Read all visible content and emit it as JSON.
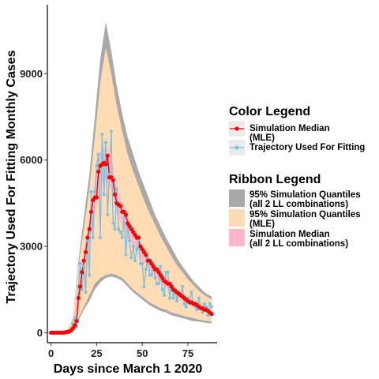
{
  "chart_data": {
    "type": "line",
    "title": "",
    "xlabel": "Days since March 1 2020",
    "ylabel": "Trajectory Used For Fitting Monthly Cases",
    "xlim": [
      -2,
      91
    ],
    "ylim": [
      -350,
      11400
    ],
    "xticks": [
      0,
      25,
      50,
      75
    ],
    "yticks": [
      0,
      3000,
      6000,
      9000
    ],
    "grid": false,
    "legend_placement": "right",
    "colors": {
      "median": "#ff0000",
      "observed": "#7ec0dd",
      "ribbon_all": "#a9a9a9",
      "ribbon_mle": "#ffdcb4",
      "ribbon_median": "#ffb6c8"
    },
    "legends": {
      "color": {
        "title": "Color  Legend",
        "entries": [
          {
            "label_lines": [
              "Simulation Median",
              " (MLE)"
            ],
            "color": "#ff0000"
          },
          {
            "label_lines": [
              "Trajectory Used For Fitting"
            ],
            "color": "#7ec0dd"
          }
        ]
      },
      "ribbon": {
        "title": "Ribbon  Legend",
        "entries": [
          {
            "label_lines": [
              "95% Simulation Quantiles",
              " (all 2 LL combinations)"
            ],
            "color": "#a9a9a9"
          },
          {
            "label_lines": [
              "95% Simulation Quantiles",
              " (MLE)"
            ],
            "color": "#ffdcb4"
          },
          {
            "label_lines": [
              "Simulation Median",
              " (all 2 LL combinations)"
            ],
            "color": "#ffb6c8"
          }
        ]
      }
    },
    "series": [
      {
        "name": "Simulation Median (MLE)",
        "x": [
          0,
          1,
          2,
          3,
          4,
          5,
          6,
          7,
          8,
          9,
          10,
          11,
          12,
          13,
          14,
          15,
          16,
          17,
          18,
          19,
          20,
          21,
          22,
          23,
          24,
          25,
          26,
          27,
          28,
          29,
          30,
          31,
          32,
          33,
          34,
          35,
          36,
          37,
          38,
          39,
          40,
          41,
          42,
          43,
          44,
          45,
          46,
          47,
          48,
          49,
          50,
          51,
          52,
          53,
          54,
          55,
          56,
          57,
          58,
          59,
          60,
          61,
          62,
          63,
          64,
          65,
          66,
          67,
          68,
          69,
          70,
          71,
          72,
          73,
          74,
          75,
          76,
          77,
          78,
          79,
          80,
          81,
          82,
          83,
          84,
          85,
          86,
          87,
          88
        ],
        "y": [
          0,
          0,
          0,
          0,
          0,
          0,
          0,
          0,
          10,
          20,
          40,
          80,
          150,
          250,
          400,
          1200,
          1600,
          2100,
          2500,
          2800,
          3300,
          3600,
          4200,
          4600,
          4700,
          4700,
          5600,
          5800,
          5850,
          5900,
          5850,
          6150,
          5400,
          5400,
          5300,
          4800,
          4500,
          4450,
          4400,
          4200,
          4200,
          4100,
          3800,
          3700,
          3600,
          3500,
          3400,
          3300,
          3300,
          3000,
          2900,
          2800,
          2700,
          2500,
          2500,
          2400,
          2300,
          2200,
          2200,
          2100,
          2000,
          1900,
          1800,
          1750,
          1700,
          1700,
          1600,
          1500,
          1450,
          1400,
          1350,
          1300,
          1250,
          1200,
          1150,
          1100,
          1050,
          1050,
          1000,
          1000,
          950,
          900,
          850,
          850,
          800,
          800,
          750,
          700,
          650
        ]
      },
      {
        "name": "Trajectory Used For Fitting",
        "x": [
          0,
          1,
          2,
          3,
          4,
          5,
          6,
          7,
          8,
          9,
          10,
          11,
          12,
          13,
          14,
          15,
          16,
          17,
          18,
          19,
          20,
          21,
          22,
          23,
          24,
          25,
          26,
          27,
          28,
          29,
          30,
          31,
          32,
          33,
          34,
          35,
          36,
          37,
          38,
          39,
          40,
          41,
          42,
          43,
          44,
          45,
          46,
          47,
          48,
          49,
          50,
          51,
          52,
          53,
          54,
          55,
          56,
          57,
          58,
          59,
          60,
          61,
          62,
          63,
          64,
          65,
          66,
          67,
          68,
          69,
          70,
          71,
          72,
          73,
          74,
          75,
          76,
          77,
          78,
          79,
          80,
          81,
          82,
          83,
          84,
          85,
          86,
          87,
          88
        ],
        "y": [
          0,
          0,
          0,
          0,
          0,
          0,
          0,
          0,
          0,
          0,
          50,
          100,
          300,
          500,
          200,
          1600,
          2400,
          1500,
          2300,
          1400,
          3200,
          2000,
          4900,
          3300,
          4900,
          5800,
          6200,
          3300,
          6900,
          4800,
          6600,
          4100,
          5500,
          7000,
          3800,
          3600,
          5000,
          3600,
          3500,
          3300,
          4000,
          2700,
          3700,
          3200,
          2600,
          3000,
          2500,
          2900,
          3200,
          2400,
          2400,
          1600,
          2200,
          2600,
          2000,
          2000,
          2400,
          1900,
          1700,
          1700,
          2300,
          1500,
          1300,
          2100,
          2100,
          1200,
          1700,
          1200,
          1500,
          1100,
          1400,
          1300,
          1600,
          1000,
          900,
          1200,
          1100,
          1400,
          1000,
          900,
          800,
          1200,
          900,
          700,
          1000,
          900,
          600,
          1000,
          900
        ]
      }
    ],
    "ribbons": [
      {
        "name": "95% Simulation Quantiles (all 2 LL combinations)",
        "x": [
          0,
          3,
          6,
          9,
          12,
          15,
          18,
          21,
          24,
          27,
          30,
          33,
          36,
          39,
          42,
          45,
          48,
          51,
          54,
          57,
          60,
          63,
          66,
          69,
          72,
          75,
          78,
          81,
          84,
          88
        ],
        "lower": [
          0,
          0,
          0,
          0,
          0,
          400,
          800,
          1100,
          1500,
          1750,
          1900,
          1950,
          1900,
          1800,
          1600,
          1400,
          1250,
          1100,
          950,
          850,
          750,
          700,
          600,
          550,
          500,
          450,
          400,
          380,
          350,
          320
        ],
        "upper": [
          50,
          50,
          50,
          100,
          500,
          2500,
          4000,
          5500,
          7500,
          9500,
          10800,
          9800,
          8600,
          7600,
          6800,
          6200,
          5600,
          5100,
          4600,
          4100,
          3700,
          3300,
          2950,
          2600,
          2300,
          2050,
          1800,
          1600,
          1400,
          1250
        ]
      },
      {
        "name": "95% Simulation Quantiles (MLE)",
        "x": [
          0,
          3,
          6,
          9,
          12,
          15,
          18,
          21,
          24,
          27,
          30,
          33,
          36,
          39,
          42,
          45,
          48,
          51,
          54,
          57,
          60,
          63,
          66,
          69,
          72,
          75,
          78,
          81,
          84,
          88
        ],
        "lower": [
          0,
          0,
          0,
          0,
          0,
          500,
          900,
          1300,
          1700,
          1900,
          2000,
          2050,
          2000,
          1900,
          1700,
          1500,
          1350,
          1200,
          1050,
          950,
          850,
          800,
          700,
          650,
          600,
          550,
          500,
          450,
          420,
          380
        ],
        "upper": [
          50,
          50,
          50,
          80,
          450,
          2300,
          3600,
          5000,
          6800,
          8700,
          9900,
          9000,
          7900,
          7000,
          6200,
          5600,
          5100,
          4600,
          4150,
          3750,
          3350,
          3000,
          2650,
          2350,
          2100,
          1850,
          1650,
          1450,
          1300,
          1150
        ]
      },
      {
        "name": "Simulation Median (all 2 LL combinations)",
        "x": [
          0,
          3,
          6,
          9,
          12,
          15,
          18,
          21,
          24,
          27,
          30,
          33,
          36,
          39,
          42,
          45,
          48,
          51,
          54,
          57,
          60,
          63,
          66,
          69,
          72,
          75,
          78,
          81,
          84,
          88
        ],
        "lower": [
          0,
          0,
          0,
          0,
          80,
          900,
          2100,
          3000,
          4100,
          5100,
          5300,
          5000,
          4100,
          3700,
          3300,
          3000,
          2700,
          2400,
          2150,
          1950,
          1750,
          1550,
          1400,
          1250,
          1100,
          1000,
          900,
          830,
          760,
          600
        ],
        "upper": [
          0,
          0,
          0,
          40,
          300,
          1500,
          2800,
          4000,
          5200,
          6300,
          6500,
          6100,
          5100,
          4500,
          4000,
          3600,
          3250,
          2900,
          2600,
          2350,
          2100,
          1900,
          1700,
          1500,
          1350,
          1200,
          1100,
          1000,
          920,
          720
        ]
      }
    ]
  }
}
